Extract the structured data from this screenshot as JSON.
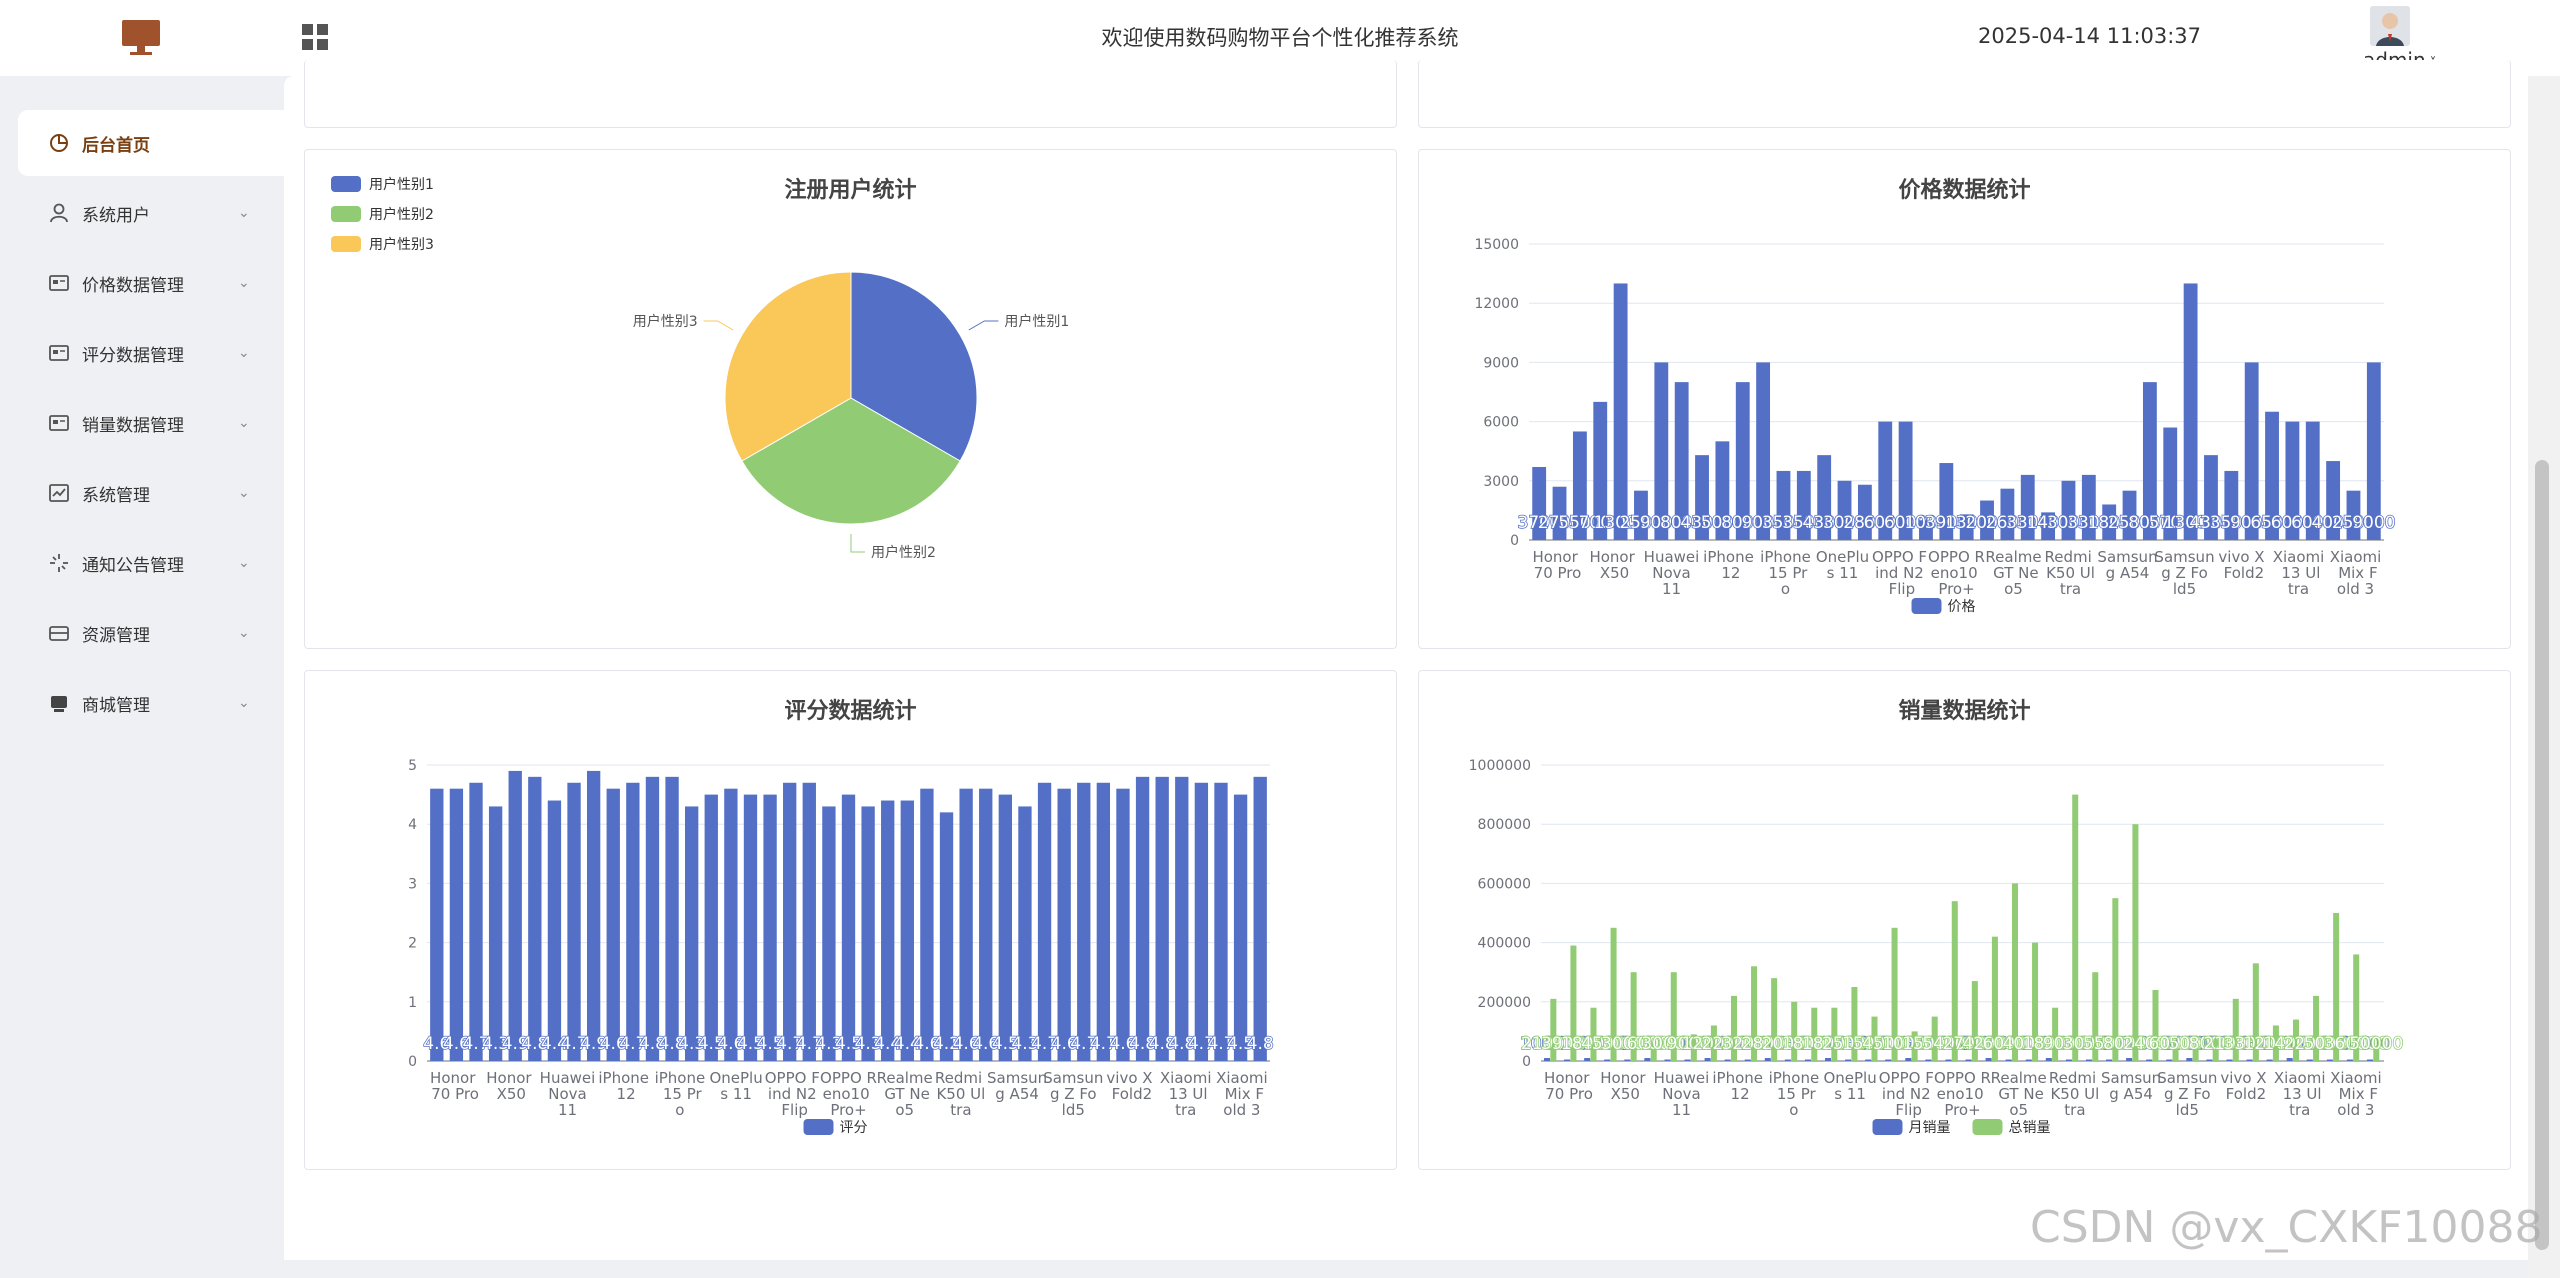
{
  "header": {
    "title": "欢迎使用数码购物平台个性化推荐系统",
    "datetime": "2025-04-14 11:03:37",
    "user": "admin"
  },
  "sidebar": {
    "items": [
      {
        "label": "后台首页",
        "icon": "clock-icon",
        "active": true
      },
      {
        "label": "系统用户",
        "icon": "user-icon"
      },
      {
        "label": "价格数据管理",
        "icon": "id-card-icon"
      },
      {
        "label": "评分数据管理",
        "icon": "id-card-icon"
      },
      {
        "label": "销量数据管理",
        "icon": "id-card-icon"
      },
      {
        "label": "系统管理",
        "icon": "chart-box-icon"
      },
      {
        "label": "通知公告管理",
        "icon": "sparkle-icon"
      },
      {
        "label": "资源管理",
        "icon": "box-icon"
      },
      {
        "label": "商城管理",
        "icon": "shop-icon"
      }
    ]
  },
  "watermark": "CSDN @vx_CXKF10088",
  "colors": {
    "blue": "#5470c6",
    "green": "#91cc75",
    "yellow": "#fac858",
    "brand": "#a0522d"
  },
  "chart_data": [
    {
      "type": "pie",
      "title": "注册用户统计",
      "legend_position": "top-left",
      "labels": [
        "用户性别1",
        "用户性别2",
        "用户性别3"
      ],
      "values": [
        1,
        1,
        1
      ]
    },
    {
      "type": "bar",
      "title": "价格数据统计",
      "series": [
        {
          "name": "价格",
          "values": [
            3700,
            2700,
            5500,
            7000,
            13000,
            2500,
            9000,
            8000,
            4300,
            5000,
            8000,
            9000,
            3500,
            3500,
            4300,
            3000,
            2800,
            6000,
            6000,
            1000,
            3900,
            1300,
            2000,
            2600,
            3300,
            1400,
            3000,
            3300,
            1800,
            2500,
            8000,
            5700,
            13000,
            4300,
            3500,
            9000,
            6500,
            6000,
            6000,
            4000,
            2500,
            9000
          ]
        }
      ],
      "tick_labels": [
        "Honor 70 Pro",
        "Honor X50",
        "Huawei Nova 11",
        "iPhone 12",
        "iPhone 15 Pro",
        "OnePlus 11",
        "OPPO Find N2 Flip",
        "OPPO Reno10 Pro+",
        "Realme GT Neo5",
        "Redmi K50 Ultra",
        "Samsung A54",
        "Samsung Z Fold5",
        "vivo X Fold2",
        "Xiaomi 13 Ultra",
        "Xiaomi Mix Fold 3"
      ],
      "ylim": [
        0,
        15000
      ],
      "yticks": [
        "0",
        "3000",
        "6000",
        "9000",
        "12000",
        "15000"
      ],
      "grid": true,
      "legend_position": "bottom"
    },
    {
      "type": "bar",
      "title": "评分数据统计",
      "series": [
        {
          "name": "评分",
          "values": [
            4.6,
            4.6,
            4.7,
            4.3,
            4.9,
            4.8,
            4.4,
            4.7,
            4.9,
            4.6,
            4.7,
            4.8,
            4.8,
            4.3,
            4.5,
            4.6,
            4.5,
            4.5,
            4.7,
            4.7,
            4.3,
            4.5,
            4.3,
            4.4,
            4.4,
            4.6,
            4.2,
            4.6,
            4.6,
            4.5,
            4.3,
            4.7,
            4.6,
            4.7,
            4.7,
            4.6,
            4.8,
            4.8,
            4.8,
            4.7,
            4.7,
            4.5,
            4.8
          ]
        }
      ],
      "tick_labels": [
        "Honor 70 Pro",
        "Honor X50",
        "Huawei Nova 11",
        "iPhone 12",
        "iPhone 15 Pro",
        "OnePlus 11",
        "OPPO Find N2 Flip",
        "OPPO Reno10 Pro+",
        "Realme GT Neo5",
        "Redmi K50 Ultra",
        "Samsung A54",
        "Samsung Z Fold5",
        "vivo X Fold2",
        "Xiaomi 13 Ultra",
        "Xiaomi Mix Fold 3"
      ],
      "ylim": [
        0,
        5
      ],
      "yticks": [
        "0",
        "1",
        "2",
        "3",
        "4",
        "5"
      ],
      "grid": true,
      "legend_position": "bottom"
    },
    {
      "type": "bar",
      "title": "销量数据统计",
      "series": [
        {
          "name": "月销量",
          "values": [
            10000,
            5000,
            10000,
            5000,
            5000,
            10000,
            5000,
            5000,
            10000,
            5000,
            5000,
            10000,
            5000,
            5000,
            10000,
            5000,
            5000,
            5000,
            10000,
            5000,
            5000,
            5000,
            10000,
            5000,
            5000,
            10000,
            5000,
            5000,
            5000,
            10000,
            5000,
            5000,
            10000,
            5000,
            5000,
            5000,
            5000,
            10000,
            5000,
            5000,
            5000,
            5000
          ]
        },
        {
          "name": "总销量",
          "values": [
            210000,
            390000,
            180000,
            450000,
            300000,
            60000,
            300000,
            90000,
            120000,
            220000,
            320000,
            280000,
            200000,
            180000,
            180000,
            250000,
            150000,
            450000,
            100000,
            150000,
            540000,
            270000,
            420000,
            600000,
            400000,
            180000,
            900000,
            300000,
            550000,
            800000,
            240000,
            60000,
            50000,
            80000,
            210000,
            330000,
            120000,
            140000,
            220000,
            500000,
            360000,
            50000
          ]
        }
      ],
      "tick_labels": [
        "Honor 70 Pro",
        "Honor X50",
        "Huawei Nova 11",
        "iPhone 12",
        "iPhone 15 Pro",
        "OnePlus 11",
        "OPPO Find N2 Flip",
        "OPPO Reno10 Pro+",
        "Realme GT Neo5",
        "Redmi K50 Ultra",
        "Samsung A54",
        "Samsung Z Fold5",
        "vivo X Fold2",
        "Xiaomi 13 Ultra",
        "Xiaomi Mix Fold 3"
      ],
      "ylim": [
        0,
        1000000
      ],
      "yticks": [
        "0",
        "200000",
        "400000",
        "600000",
        "800000",
        "1000000"
      ],
      "grid": true,
      "legend_position": "bottom"
    }
  ]
}
